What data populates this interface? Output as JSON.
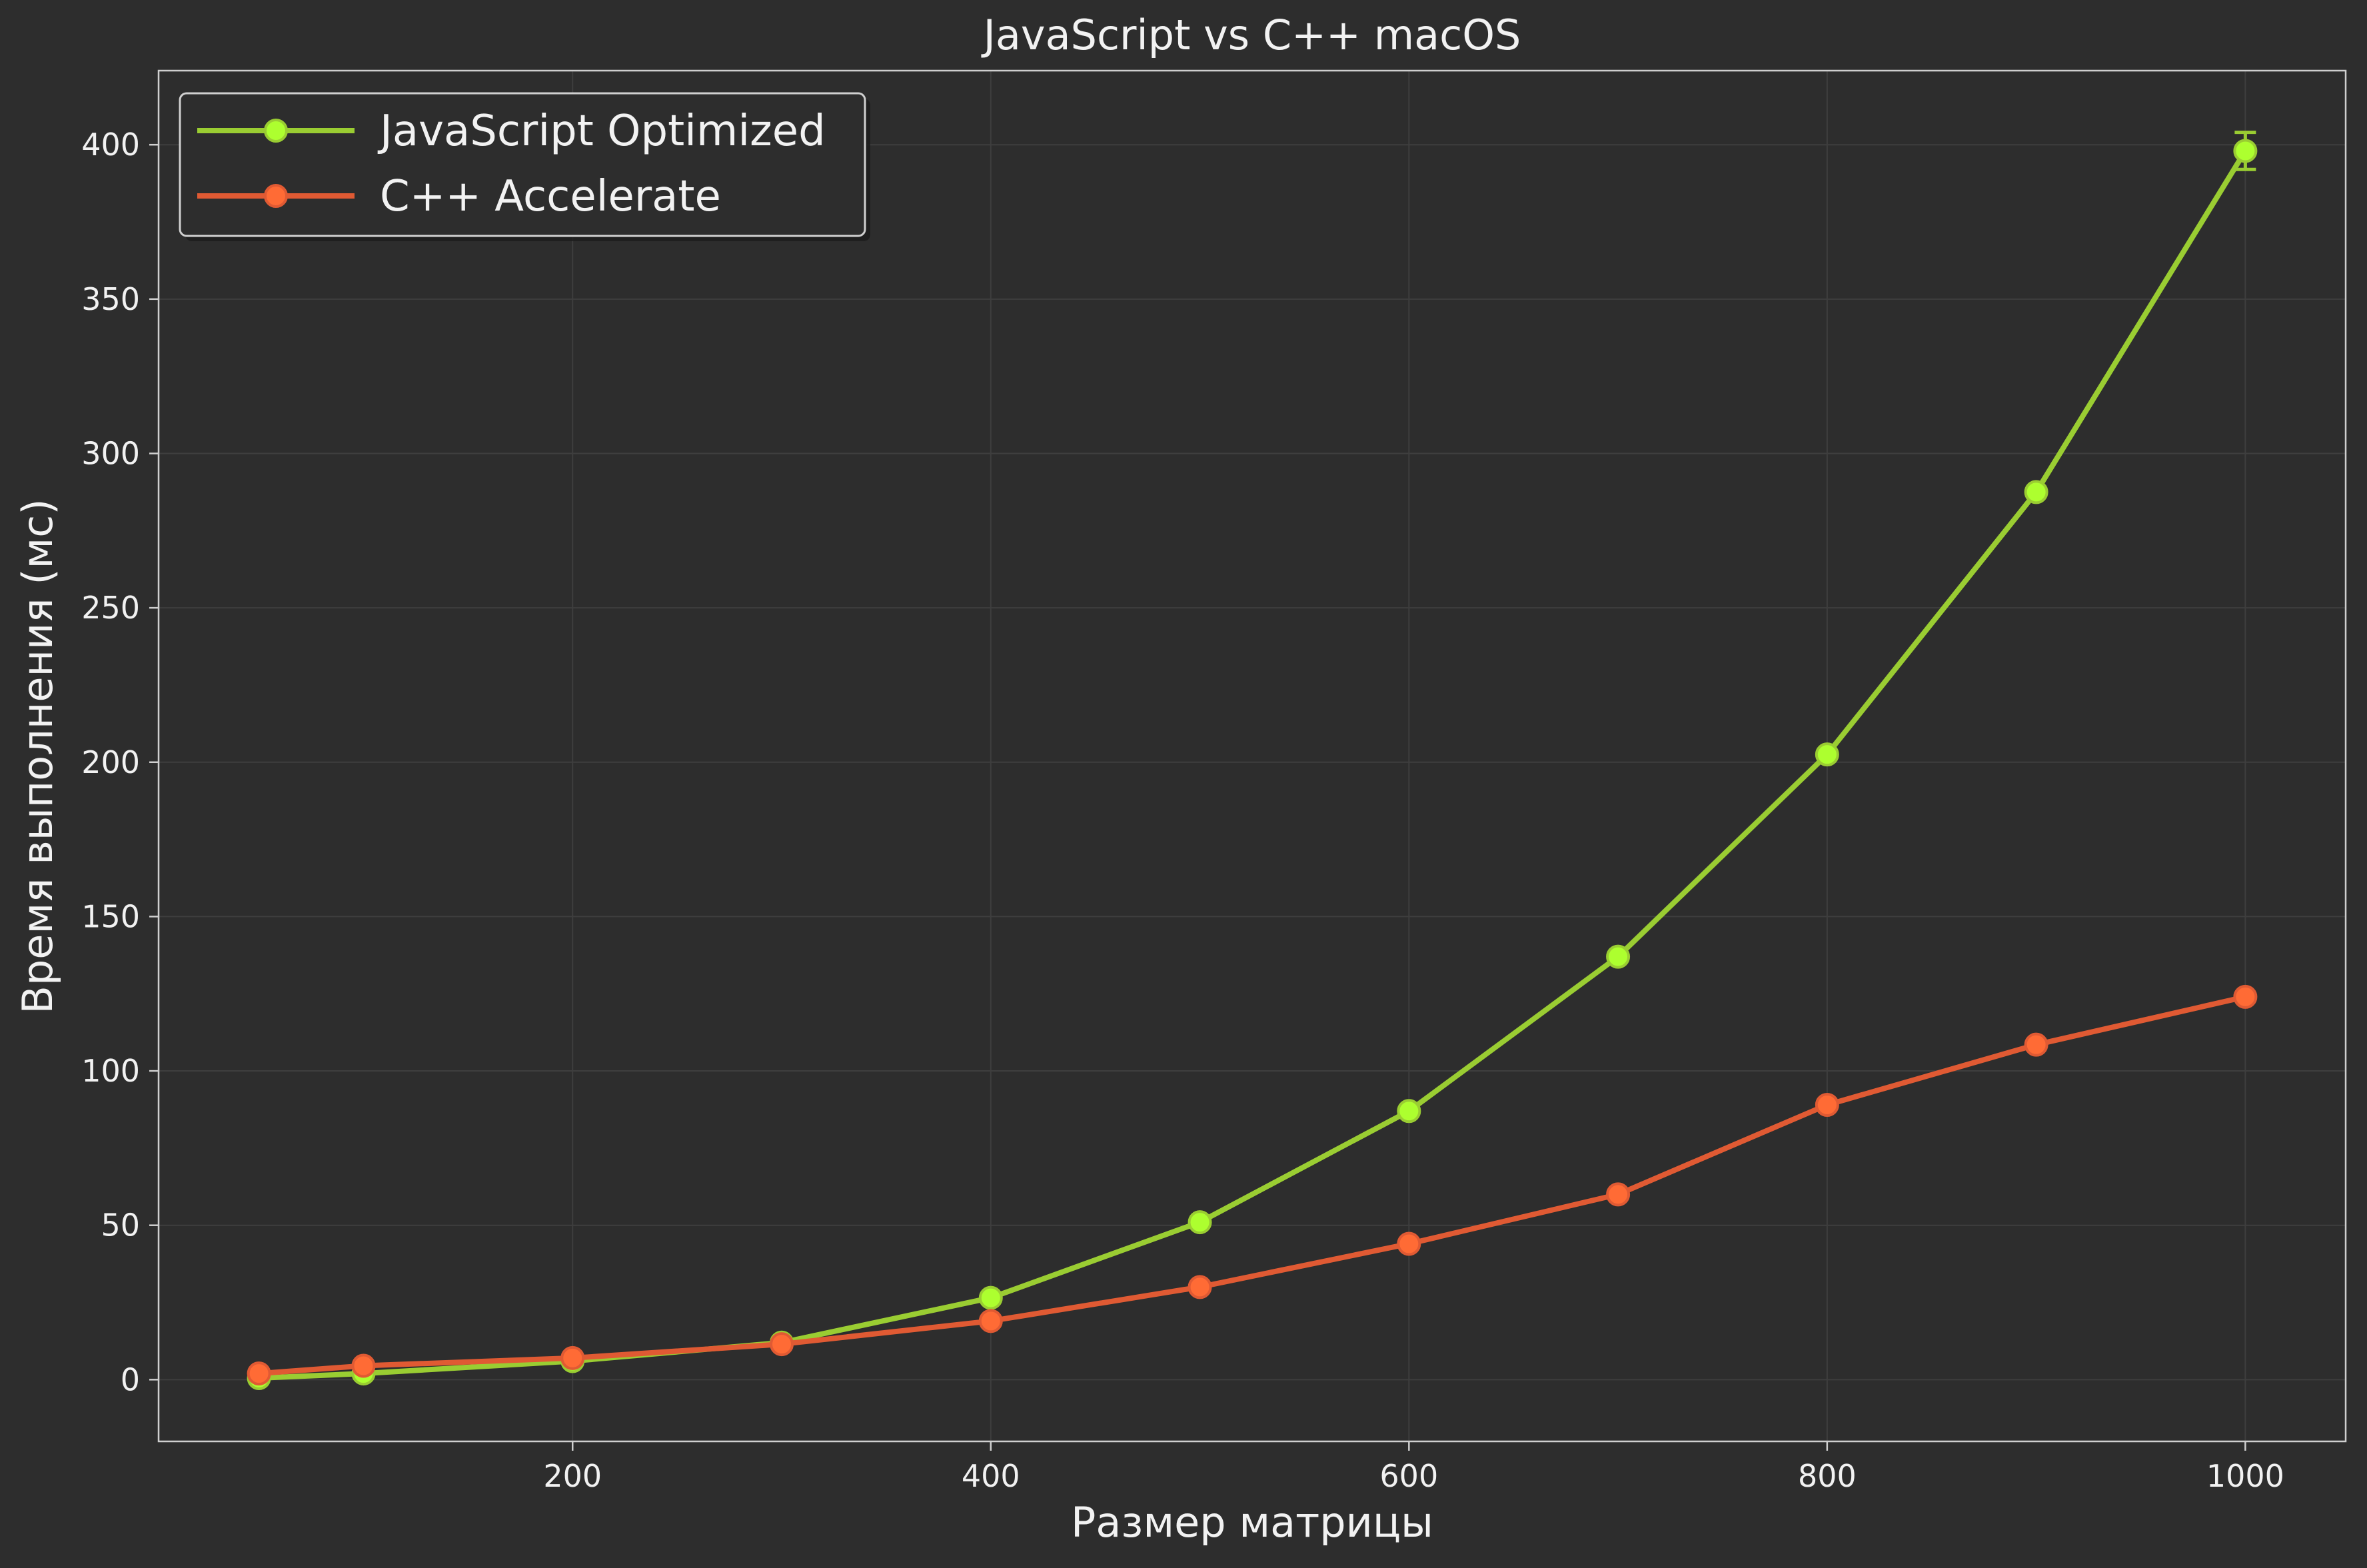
{
  "chart_data": {
    "type": "line",
    "title": "JavaScript vs C++ macOS",
    "xlabel": "Размер матрицы",
    "ylabel": "Время выполнения (мс)",
    "xlim": [
      2,
      1048
    ],
    "ylim": [
      -20,
      424
    ],
    "xticks": [
      200,
      400,
      600,
      800,
      1000
    ],
    "yticks": [
      0,
      50,
      100,
      150,
      200,
      250,
      300,
      350,
      400
    ],
    "grid": true,
    "legend_position": "top-left",
    "background_color": "#2d2d2d",
    "x": [
      50,
      100,
      200,
      300,
      400,
      500,
      600,
      700,
      800,
      900,
      1000
    ],
    "series": [
      {
        "name": "JavaScript Optimized",
        "color": "#9acd32",
        "marker_color": "#adff2f",
        "values": [
          0.5,
          2,
          6,
          12,
          26.5,
          51,
          87,
          137,
          202.5,
          287.5,
          398
        ],
        "error": [
          0,
          0,
          0,
          0,
          0,
          0,
          0,
          0,
          0,
          0,
          6
        ]
      },
      {
        "name": "C++ Accelerate",
        "color": "#e05a33",
        "marker_color": "#ff6b35",
        "values": [
          2,
          4.5,
          7,
          11.5,
          19,
          30,
          44,
          60,
          89,
          108.5,
          124
        ],
        "error": [
          0,
          0,
          0,
          0,
          0,
          0,
          0,
          0,
          0,
          0,
          0
        ]
      }
    ]
  }
}
